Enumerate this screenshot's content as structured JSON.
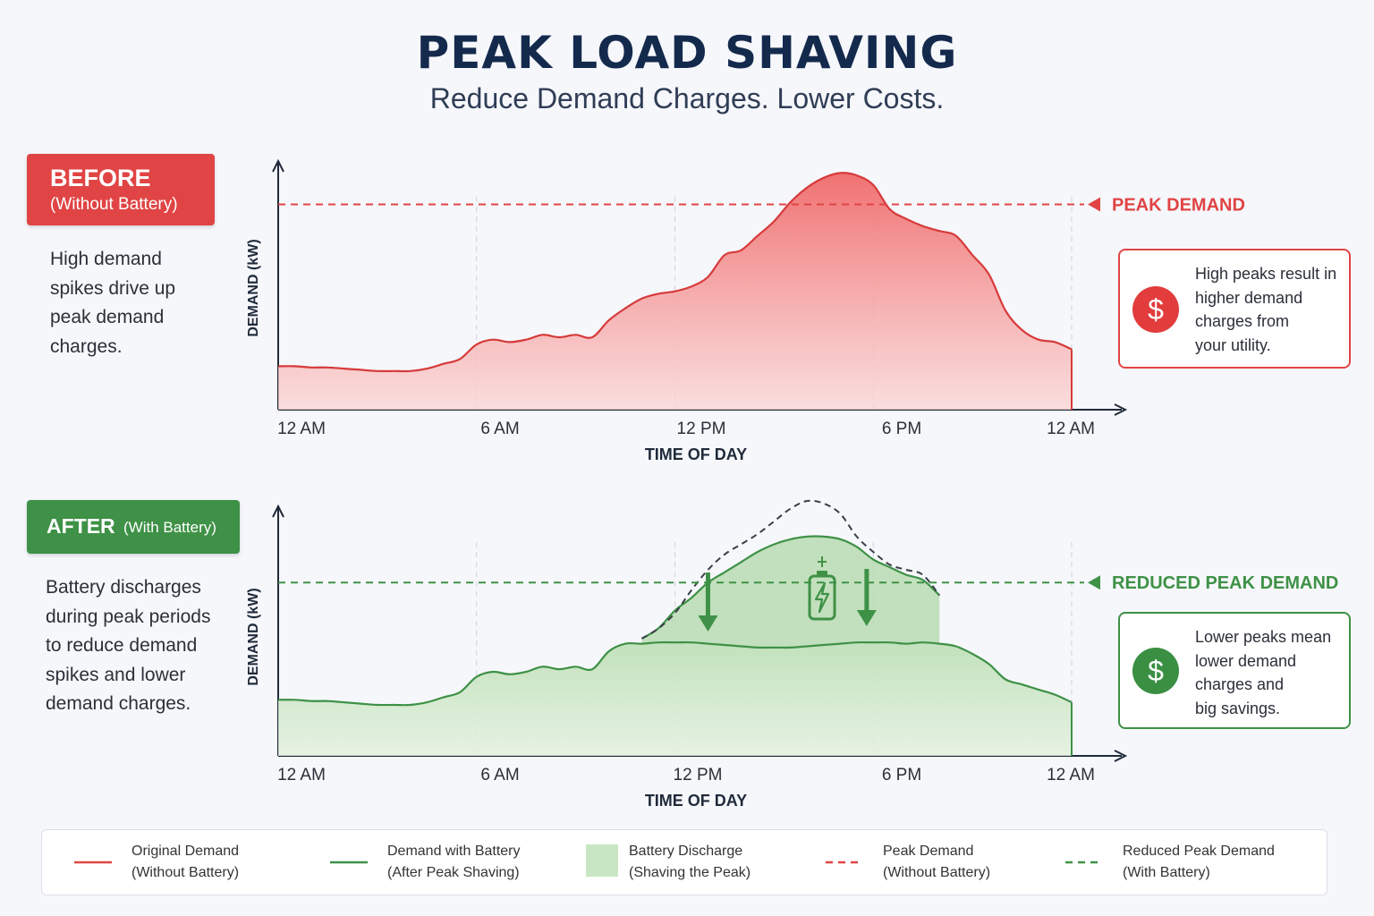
{
  "title": "PEAK LOAD SHAVING",
  "subtitle": "Reduce Demand Charges. Lower Costs.",
  "colors": {
    "before": "#e04444",
    "before_fill": "#f6aaaa",
    "after": "#3e9146",
    "after_fill": "#c9e6c4",
    "title": "#142a4d"
  },
  "before_panel": {
    "badge_main": "BEFORE",
    "badge_sub": "(Without Battery)",
    "description_lines": [
      "High demand",
      "spikes drive up",
      "peak demand",
      "charges."
    ],
    "callout_icon": "dollar-icon",
    "callout_lines": [
      "High peaks result in",
      "higher demand",
      "charges from",
      "your utility."
    ]
  },
  "after_panel": {
    "badge_main": "AFTER",
    "badge_sub": "(With Battery)",
    "description_lines": [
      "Battery discharges",
      "during peak periods",
      "to reduce demand",
      "spikes and lower",
      "demand charges."
    ],
    "callout_icon": "dollar-icon",
    "callout_lines": [
      "Lower peaks mean",
      "lower demand",
      "charges and",
      "big savings."
    ],
    "battery_icon": "battery-charge-icon"
  },
  "legend": [
    {
      "symbol": "solid-red-line",
      "lines": [
        "Original Demand",
        "(Without Battery)"
      ]
    },
    {
      "symbol": "solid-green-line",
      "lines": [
        "Demand with Battery",
        "(After Peak Shaving)"
      ]
    },
    {
      "symbol": "green-area",
      "lines": [
        "Battery Discharge",
        "(Shaving the Peak)"
      ]
    },
    {
      "symbol": "dashed-red-line",
      "lines": [
        "Peak Demand",
        "(Without Battery)"
      ]
    },
    {
      "symbol": "dashed-green-line",
      "lines": [
        "Reduced Peak Demand",
        "(With Battery)"
      ]
    }
  ],
  "chart_data": [
    {
      "type": "area",
      "xlabel": "TIME OF DAY",
      "ylabel": "DEMAND (kW)",
      "x_tick_labels": [
        "12 AM",
        "6 AM",
        "12 PM",
        "6 PM",
        "12 AM"
      ],
      "xlim": [
        0,
        24
      ],
      "ylim": [
        0,
        100
      ],
      "grid": "vertical",
      "threshold": {
        "label": "PEAK DEMAND",
        "value": 85
      },
      "x": [
        0,
        0.5,
        1,
        1.5,
        2,
        2.5,
        3,
        3.5,
        4,
        4.5,
        5,
        5.5,
        6,
        6.5,
        7,
        7.5,
        8,
        8.5,
        9,
        9.5,
        10,
        10.5,
        11,
        11.5,
        12,
        12.5,
        13,
        13.5,
        14,
        14.5,
        15,
        15.5,
        16,
        16.5,
        17,
        17.5,
        18,
        18.5,
        19,
        19.5,
        20,
        20.5,
        21,
        21.5,
        22,
        22.5,
        23,
        23.5,
        24
      ],
      "series": [
        {
          "values": [
            18,
            18,
            17.5,
            17.5,
            17,
            16.5,
            16,
            16,
            16,
            17,
            19,
            21,
            27,
            29,
            28,
            29,
            31,
            30,
            31,
            30,
            37,
            42,
            46,
            48,
            49,
            51,
            55,
            64,
            66,
            72,
            78,
            86,
            92,
            96,
            98,
            97,
            93,
            83,
            79,
            76,
            74,
            72,
            64,
            56,
            41,
            33,
            29,
            28,
            25
          ]
        }
      ]
    },
    {
      "type": "area",
      "xlabel": "TIME OF DAY",
      "ylabel": "DEMAND (kW)",
      "x_tick_labels": [
        "12 AM",
        "6 AM",
        "12 PM",
        "6 PM",
        "12 AM"
      ],
      "xlim": [
        0,
        24
      ],
      "ylim": [
        0,
        100
      ],
      "grid": "vertical",
      "threshold": {
        "label": "REDUCED PEAK DEMAND",
        "value": 68
      },
      "x": [
        0,
        0.5,
        1,
        1.5,
        2,
        2.5,
        3,
        3.5,
        4,
        4.5,
        5,
        5.5,
        6,
        6.5,
        7,
        7.5,
        8,
        8.5,
        9,
        9.5,
        10,
        10.5,
        11,
        11.5,
        12,
        12.5,
        13,
        13.5,
        14,
        14.5,
        15,
        15.5,
        16,
        16.5,
        17,
        17.5,
        18,
        18.5,
        19,
        19.5,
        20,
        20.5,
        21,
        21.5,
        22,
        22.5,
        23,
        23.5,
        24
      ],
      "series": [
        {
          "values": [
            22,
            22,
            21.5,
            21.5,
            21,
            20.5,
            20,
            20,
            20,
            21,
            23,
            25,
            31,
            33,
            32,
            33,
            35,
            34,
            35,
            34,
            41,
            44,
            44,
            44.5,
            44.5,
            44.5,
            44,
            43.5,
            43,
            42.5,
            42.5,
            42.5,
            43,
            43.5,
            44,
            44.5,
            44.5,
            44.5,
            44,
            44.5,
            44,
            43,
            40,
            36,
            30,
            28,
            26,
            24,
            21
          ]
        },
        {
          "values": [
            null,
            null,
            null,
            null,
            null,
            null,
            null,
            null,
            null,
            null,
            null,
            null,
            null,
            null,
            null,
            null,
            null,
            null,
            null,
            null,
            null,
            null,
            46,
            50,
            57,
            62,
            68,
            72,
            76,
            80,
            83,
            85,
            86,
            86,
            85,
            82,
            77,
            74,
            71,
            69,
            63,
            null,
            null,
            null,
            null,
            null,
            null,
            null,
            null
          ]
        },
        {
          "values": [
            null,
            null,
            null,
            null,
            null,
            null,
            null,
            null,
            null,
            null,
            null,
            null,
            null,
            null,
            null,
            null,
            null,
            null,
            null,
            null,
            null,
            null,
            46,
            50,
            56,
            65,
            73,
            79,
            83,
            87,
            92,
            97,
            100,
            99,
            95,
            86,
            80,
            75,
            73,
            71,
            63,
            null,
            null,
            null,
            null,
            null,
            null,
            null,
            null
          ]
        }
      ]
    }
  ]
}
